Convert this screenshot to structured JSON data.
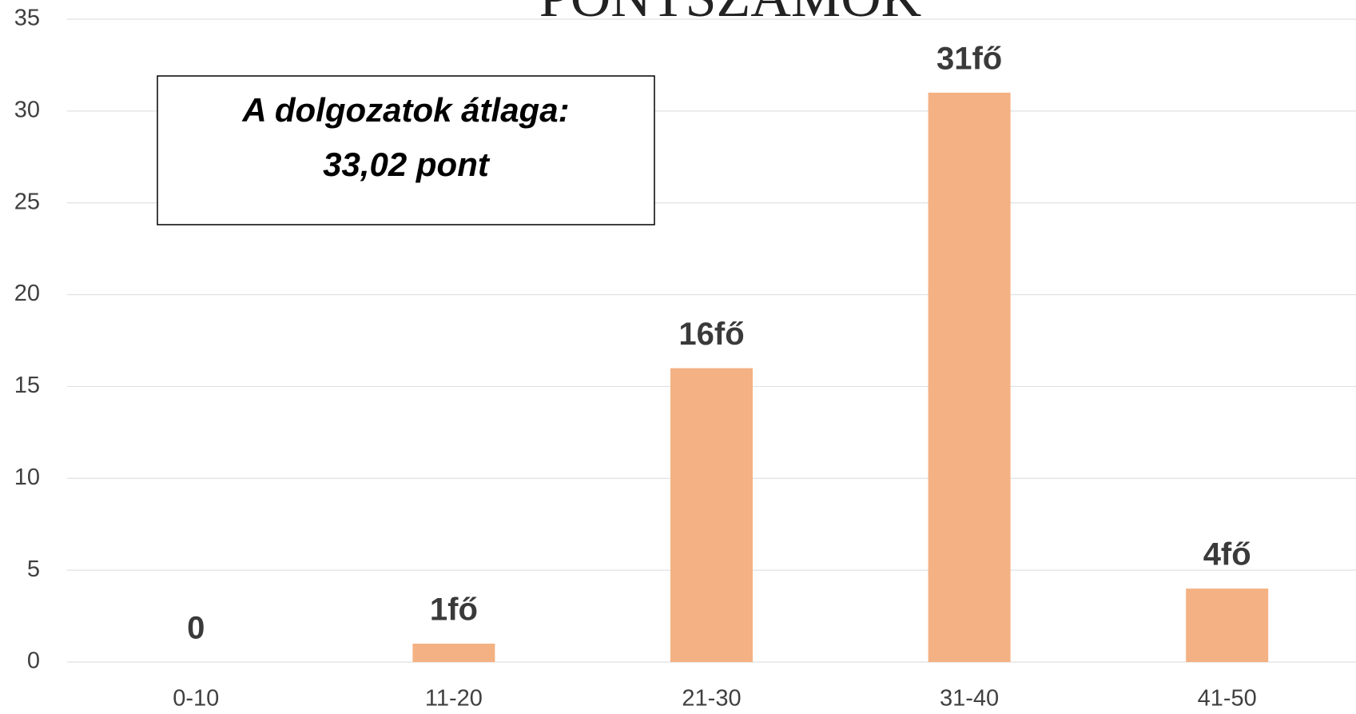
{
  "chart_data": {
    "type": "bar",
    "title": "PONTSZÁMOK",
    "categories": [
      "0-10",
      "11-20",
      "21-30",
      "31-40",
      "41-50"
    ],
    "values": [
      0,
      1,
      16,
      31,
      4
    ],
    "value_labels": [
      "0",
      "1fő",
      "16fő",
      "31fő",
      "4fő"
    ],
    "color": "#f4b183",
    "ylim": [
      0,
      35
    ],
    "yticks": [
      0,
      5,
      10,
      15,
      20,
      25,
      30,
      35
    ],
    "grid": true,
    "annotation": [
      "A dolgozatok átlaga:",
      "33,02 pont"
    ]
  }
}
